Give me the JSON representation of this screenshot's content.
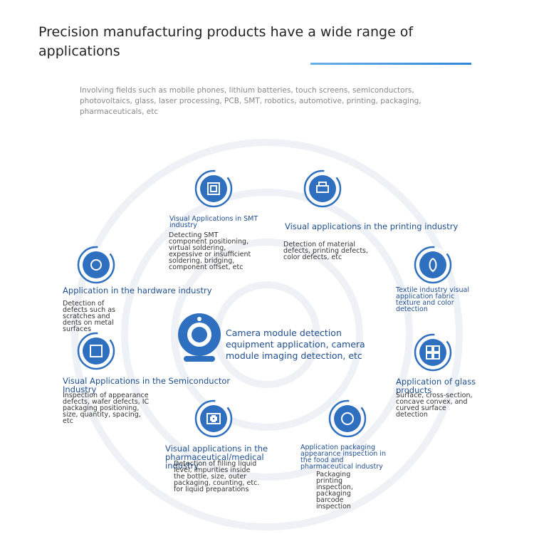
{
  "header": {
    "title": "Precision manufacturing products have a wide range of applications",
    "subtitle": "Involving fields such as mobile phones, lithium batteries, touch screens, semiconductors, photovoltaics, glass, laser processing, PCB, SMT, robotics, automotive, printing, packaging, pharmaceuticals, etc"
  },
  "center": {
    "text": "Camera module detection equipment application, camera module imaging detection, etc"
  },
  "items": [
    {
      "title": "Visual Applications in SMT industry",
      "description": "Detecting SMT component positioning, virtual soldering, expessive or insufficient soldering, bridging, component offset, etc"
    },
    {
      "title": "Visual applications in the printing industry",
      "description": "Detection of material defects, printing defects, color defects, etc"
    },
    {
      "title": "Application in the hardware industry",
      "description": "Detection of defects such as scratches and dents on metal surfaces"
    },
    {
      "title": "Textile industry visual application fabric texture and color detection"
    },
    {
      "title": "Visual Applications in the Semiconductor Industry",
      "description": "Inspection of appearance defects, wafer defects, IC packaging positioning, size, quantity, spacing, etc"
    },
    {
      "title": "Application of glass products",
      "description": "Surface, cross-section, concave convex, and curved surface detection"
    },
    {
      "title": "Visual applications in the pharmaceutical/medical industry",
      "description": "Detection of filling liquid level, impurities inside the bottle, size, outer packaging, counting, etc. for liquid preparations"
    },
    {
      "title": "Application packaging appearance inspection in the food and pharmaceutical industry",
      "description": "Packaging printing inspection, packaging barcode inspection"
    }
  ]
}
